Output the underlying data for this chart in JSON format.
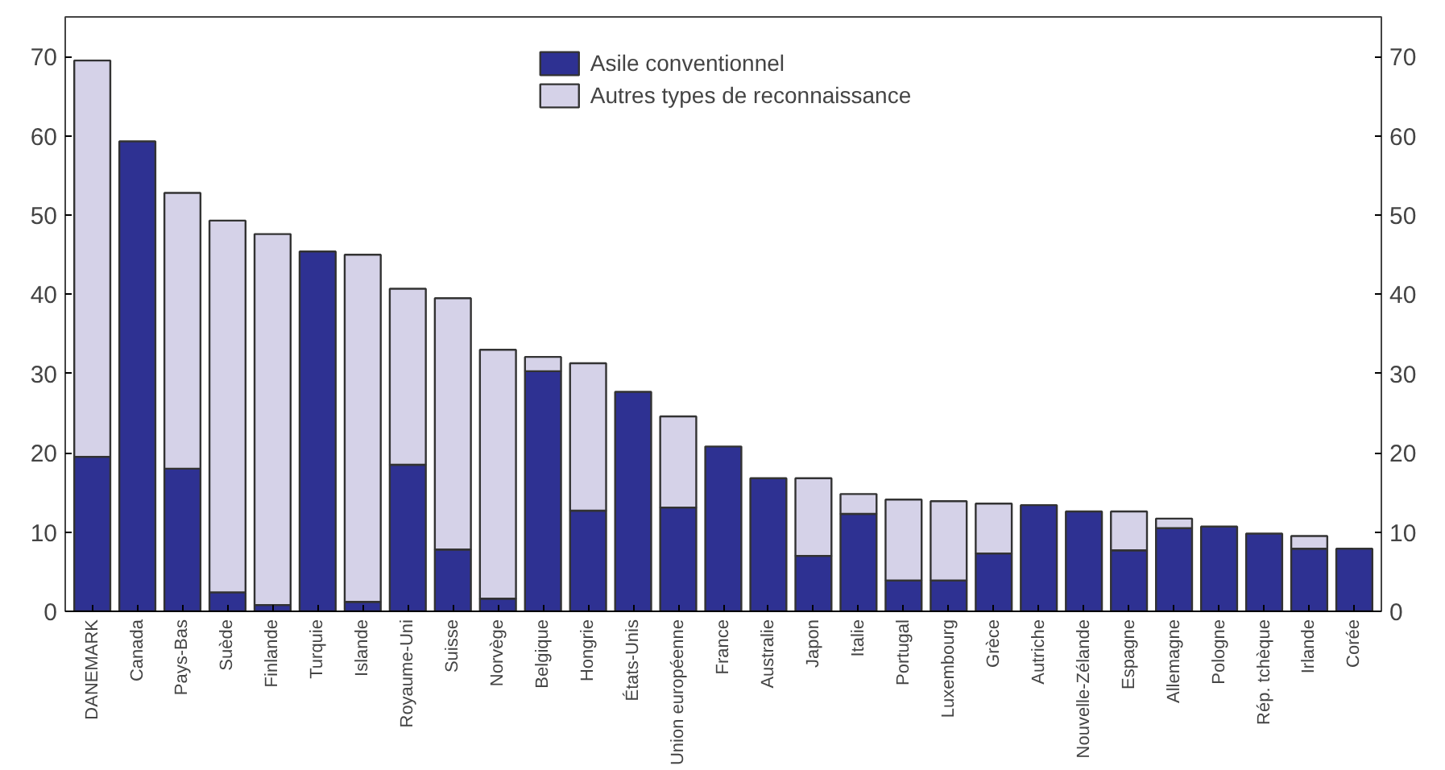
{
  "chart_data": {
    "type": "bar",
    "stacked": true,
    "categories": [
      "DANEMARK",
      "Canada",
      "Pays-Bas",
      "Suède",
      "Finlande",
      "Turquie",
      "Islande",
      "Royaume-Uni",
      "Suisse",
      "Norvège",
      "Belgique",
      "Hongrie",
      "États-Unis",
      "Union européenne",
      "France",
      "Australie",
      "Japon",
      "Italie",
      "Portugal",
      "Luxembourg",
      "Grèce",
      "Autriche",
      "Nouvelle-Zélande",
      "Espagne",
      "Allemagne",
      "Pologne",
      "Rép. tchèque",
      "Irlande",
      "Corée"
    ],
    "series": [
      {
        "name": "Asile conventionnel",
        "color": "#2e3192",
        "values": [
          19.5,
          59.3,
          18,
          2.4,
          0.8,
          45.4,
          1.2,
          18.5,
          7.8,
          1.6,
          30.3,
          12.7,
          27.7,
          13.1,
          20.8,
          16.8,
          7,
          12.3,
          3.9,
          3.9,
          7.3,
          13.4,
          12.6,
          7.7,
          10.5,
          10.7,
          9.8,
          7.9,
          7.9
        ]
      },
      {
        "name": "Autres types de reconnaissance",
        "color": "#d5d2e8",
        "values": [
          50,
          0,
          34.8,
          46.9,
          46.8,
          0,
          43.8,
          22.2,
          31.7,
          31.4,
          1.8,
          18.6,
          0,
          11.5,
          0,
          0,
          9.8,
          2.5,
          10.2,
          10,
          6.3,
          0,
          0,
          4.9,
          1.2,
          0,
          0,
          1.6,
          0
        ]
      }
    ],
    "ylim": [
      0,
      75
    ],
    "yticks": [
      0,
      10,
      20,
      30,
      40,
      50,
      60,
      70
    ],
    "y2lim": [
      0,
      75
    ],
    "y2ticks": [
      0,
      10,
      20,
      30,
      40,
      50,
      60,
      70
    ],
    "grid": false,
    "legend": "top"
  }
}
